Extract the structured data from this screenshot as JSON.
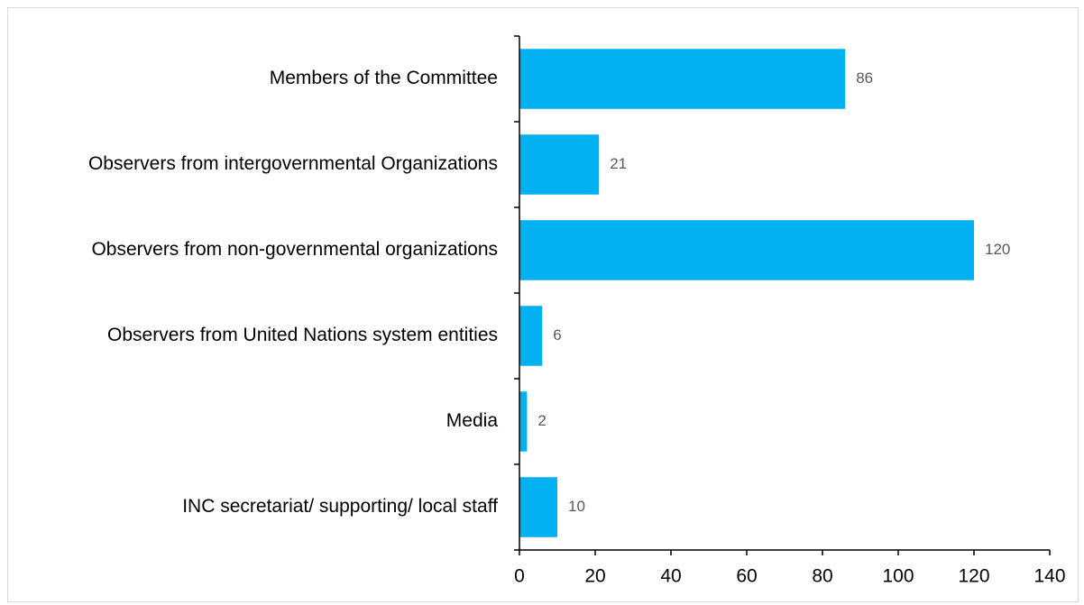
{
  "chart_data": {
    "type": "bar",
    "orientation": "horizontal",
    "categories": [
      "Members of the Committee",
      "Observers from intergovernmental Organizations",
      "Observers from non-governmental organizations",
      "Observers from United Nations system entities",
      "Media",
      "INC secretariat/ supporting/ local staff"
    ],
    "values": [
      86,
      21,
      120,
      6,
      2,
      10
    ],
    "data_labels": [
      "86",
      "21",
      "120",
      "6",
      "2",
      "10"
    ],
    "title": "",
    "xlabel": "",
    "ylabel": "",
    "xlim": [
      0,
      140
    ],
    "x_ticks": [
      0,
      20,
      40,
      60,
      80,
      100,
      120,
      140
    ],
    "x_tick_labels": [
      "0",
      "20",
      "40",
      "60",
      "80",
      "100",
      "120",
      "140"
    ],
    "grid": false,
    "legend": "none",
    "bar_color": "#00b0f0",
    "data_label_color": "#595959"
  }
}
